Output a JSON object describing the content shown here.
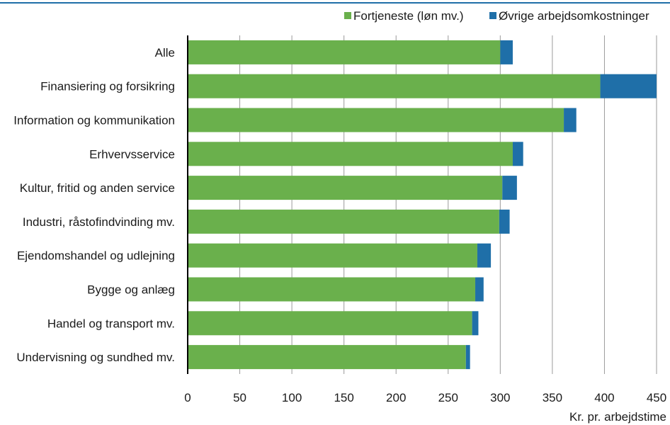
{
  "chart_data": {
    "type": "bar",
    "orientation": "horizontal",
    "stacked": true,
    "categories": [
      "Alle",
      "Finansiering og forsikring",
      "Information og kommunikation",
      "Erhvervsservice",
      "Kultur, fritid og anden service",
      "Industri, råstofindvinding mv.",
      "Ejendomshandel og udlejning",
      "Bygge og anlæg",
      "Handel og transport mv.",
      "Undervisning og sundhed mv."
    ],
    "series": [
      {
        "name": "Fortjeneste (løn mv.)",
        "color": "#6ab04c",
        "values": [
          300,
          396,
          361,
          312,
          302,
          299,
          278,
          276,
          273,
          267
        ]
      },
      {
        "name": "Øvrige arbejdsomkostninger",
        "color": "#1f6fa8",
        "values": [
          12,
          54,
          12,
          10,
          14,
          10,
          13,
          8,
          6,
          4
        ]
      }
    ],
    "xlim": [
      0,
      450
    ],
    "xticks": [
      "0",
      "50",
      "100",
      "150",
      "200",
      "250",
      "300",
      "350",
      "400",
      "450"
    ],
    "xlabel": "Kr. pr. arbejdstime",
    "title": "",
    "legend_position": "top-right",
    "grid": "vertical",
    "top_rule_color": "#1f6fa8"
  }
}
